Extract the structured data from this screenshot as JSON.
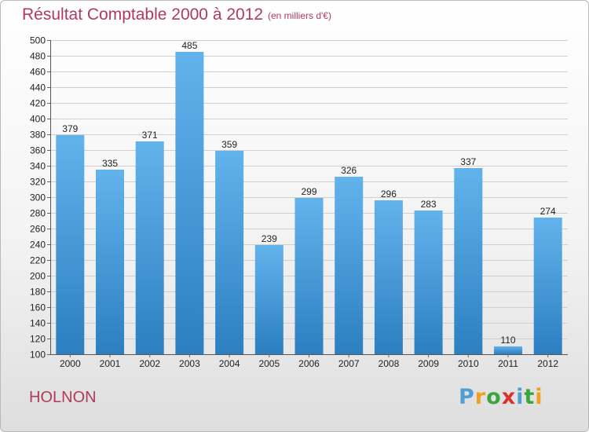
{
  "header": {
    "title": "Résultat Comptable 2000 à 2012",
    "subtitle": "(en milliers d'€)"
  },
  "commune": "HOLNON",
  "logo": {
    "text": "Proxiti",
    "letters": [
      "P",
      "r",
      "o",
      "x",
      "i",
      "t",
      "i"
    ],
    "colors": [
      "#4f9fd7",
      "#f0a020",
      "#3aa640",
      "#d9342b",
      "#4f9fd7",
      "#3aa640",
      "#f0a020"
    ]
  },
  "colors": {
    "bar_top": "#62b3ec",
    "bar_bottom": "#2c7fc0",
    "grid": "#cfcfcf",
    "title": "#b03a5c"
  },
  "chart_data": {
    "type": "bar",
    "categories": [
      "2000",
      "2001",
      "2002",
      "2003",
      "2004",
      "2005",
      "2006",
      "2007",
      "2008",
      "2009",
      "2010",
      "2011",
      "2012"
    ],
    "values": [
      379,
      335,
      371,
      485,
      359,
      239,
      299,
      326,
      296,
      283,
      337,
      110,
      274
    ],
    "title": "Résultat Comptable 2000 à 2012",
    "subtitle": "(en milliers d'€)",
    "xlabel": "",
    "ylabel": "",
    "ylim": [
      100,
      500
    ],
    "yticks": [
      100,
      120,
      140,
      160,
      180,
      200,
      220,
      240,
      260,
      280,
      300,
      320,
      340,
      360,
      380,
      400,
      420,
      440,
      460,
      480,
      500
    ],
    "grid": true,
    "legend": "none"
  }
}
